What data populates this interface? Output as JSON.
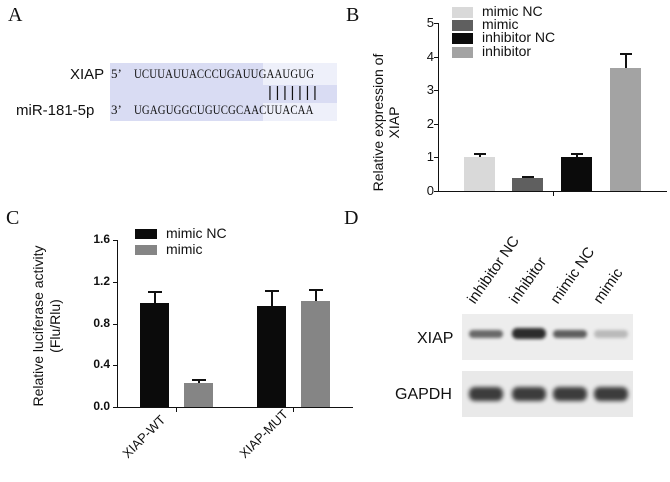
{
  "panels": {
    "A": {
      "label": "A"
    },
    "B": {
      "label": "B"
    },
    "C": {
      "label": "C"
    },
    "D": {
      "label": "D"
    }
  },
  "panel_a": {
    "top_gene": "XIAP",
    "top_prime": "5’",
    "top_seq": "UCUUAUUACCCUGAUUGAAUGUG",
    "pairing": "|||||||",
    "bottom_gene": "miR-181-5p",
    "bottom_prime": "3’",
    "bottom_seq": "UGAGUGGCUGUCGCAACUUACAA",
    "highlight_color": "#d9dcf3"
  },
  "panel_d": {
    "lanes": [
      "inhibitor NC",
      "inhibitor",
      "mimic NC",
      "mimic"
    ],
    "rows": [
      "XIAP",
      "GAPDH"
    ]
  },
  "chart_data": [
    {
      "type": "bar",
      "panel": "B",
      "title": "",
      "xlabel": "",
      "ylabel": "Relative expression of XIAP",
      "ylabel_lines": [
        "Relative expression of",
        "XIAP"
      ],
      "ylim": [
        0,
        5
      ],
      "yticks": [
        "0",
        "1",
        "2",
        "3",
        "4",
        "5"
      ],
      "categories": [
        "mimic NC",
        "mimic",
        "inhibitor NC",
        "inhibitor"
      ],
      "values": [
        1.0,
        0.4,
        1.0,
        3.65
      ],
      "errors": [
        0.12,
        0.05,
        0.13,
        0.47
      ],
      "colors": [
        "#d9d9d9",
        "#5f5f5f",
        "#0b0b0b",
        "#a3a3a3"
      ],
      "legend": [
        "mimic NC",
        "mimic",
        "inhibitor NC",
        "inhibitor"
      ],
      "legend_position": "top-right",
      "grid": false
    },
    {
      "type": "bar",
      "panel": "C",
      "title": "",
      "xlabel": "",
      "ylabel": "Relative luciferase activity (Flu/Rlu)",
      "ylabel_lines": [
        "Relative luciferase activity",
        "(Flu/Rlu)"
      ],
      "ylim": [
        0,
        1.6
      ],
      "yticks": [
        "0.0",
        "0.4",
        "0.8",
        "1.2",
        "1.6"
      ],
      "categories": [
        "XIAP-WT",
        "XIAP-MUT"
      ],
      "series": [
        {
          "name": "mimic NC",
          "color": "#0b0b0b",
          "values": [
            1.0,
            0.97
          ],
          "errors": [
            0.11,
            0.15
          ]
        },
        {
          "name": "mimic",
          "color": "#858585",
          "values": [
            0.23,
            1.02
          ],
          "errors": [
            0.04,
            0.11
          ]
        }
      ],
      "legend": [
        "mimic NC",
        "mimic"
      ],
      "legend_position": "top-left",
      "grid": false
    }
  ]
}
